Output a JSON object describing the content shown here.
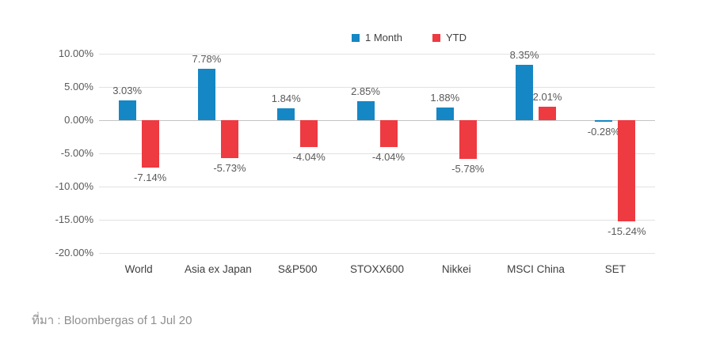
{
  "page": {
    "background": "#ffffff"
  },
  "legend": {
    "items": [
      {
        "label": "1 Month",
        "color": "#1587c4"
      },
      {
        "label": "YTD",
        "color": "#ee3a41"
      }
    ]
  },
  "source_note": "ที่มา : Bloombergas of 1 Jul 20",
  "colors": {
    "one_month_bar": "#1587c4",
    "ytd_bar": "#ee3a41",
    "gridline": "#e2e2e2",
    "zero_line": "#c3c3c3",
    "tick_label": "#595959",
    "value_label": "#595959",
    "category_label": "#404040",
    "source_text": "#8f8f8f"
  },
  "chart_data": {
    "type": "bar",
    "title": "",
    "categories": [
      "World",
      "Asia ex Japan",
      "S&P500",
      "STOXX600",
      "Nikkei",
      "MSCI China",
      "SET"
    ],
    "series": [
      {
        "name": "1 Month",
        "color": "#1587c4",
        "values": [
          3.03,
          7.78,
          1.84,
          2.85,
          1.88,
          8.35,
          -0.28
        ],
        "labels": [
          "3.03%",
          "7.78%",
          "1.84%",
          "2.85%",
          "1.88%",
          "8.35%",
          "-0.28%"
        ]
      },
      {
        "name": "YTD",
        "color": "#ee3a41",
        "values": [
          -7.14,
          -5.73,
          -4.04,
          -4.04,
          -5.78,
          2.01,
          -15.24
        ],
        "labels": [
          "-7.14%",
          "-5.73%",
          "-4.04%",
          "-4.04%",
          "-5.78%",
          "2.01%",
          "-15.24%"
        ]
      }
    ],
    "y_ticks": [
      {
        "value": 10,
        "label": "10.00%"
      },
      {
        "value": 5,
        "label": "5.00%"
      },
      {
        "value": 0,
        "label": "0.00%"
      },
      {
        "value": -5,
        "label": "-5.00%"
      },
      {
        "value": -10,
        "label": "-10.00%"
      },
      {
        "value": -15,
        "label": "-15.00%"
      },
      {
        "value": -20,
        "label": "-20.00%"
      }
    ],
    "ylim": [
      -20,
      10
    ],
    "grid": true,
    "legend_position": "top-center"
  }
}
